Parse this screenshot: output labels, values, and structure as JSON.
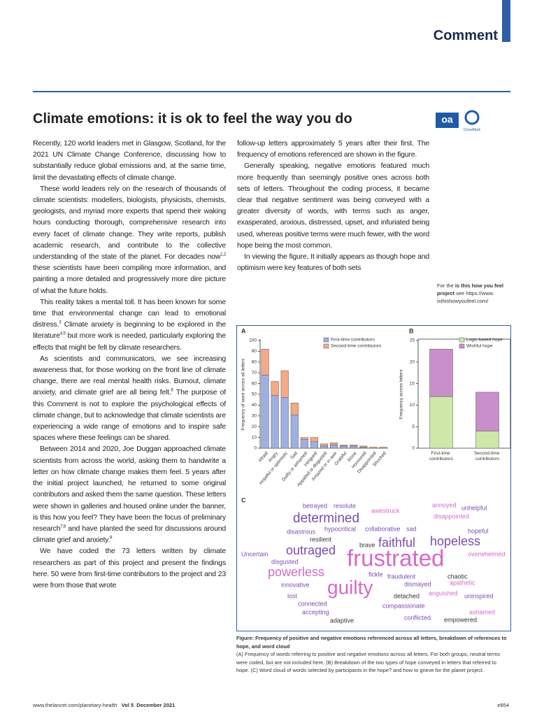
{
  "header": {
    "section": "Comment"
  },
  "title": "Climate emotions: it is ok to feel the way you do",
  "logos": {
    "oa": "oa",
    "crossmark": "CrossMark"
  },
  "body": {
    "left": [
      [
        "Recently, 120 world leaders met in Glasgow, Scotland, for the 2021 UN Climate Change Conference, discussing how to substantially reduce global emissions and, at the same time, limit the devastating effects of climate change."
      ],
      [
        "These world leaders rely on the research of thousands of climate scientists: modellers, biologists, physicists, chemists, geologists, and myriad more experts that spend their waking hours conducting thorough, comprehensive research into every facet of climate change. They write reports, publish academic research, and contribute to the collective understanding of the state of the planet. For decades now",
        {
          "sup": "1,2"
        },
        " these scientists have been compiling more information, and painting a more detailed and progressively more dire picture of what the future holds."
      ],
      [
        "This reality takes a mental toll. It has been known for some time that environmental change can lead to emotional distress.",
        {
          "sup": "3"
        },
        " Climate anxiety is beginning to be explored in the literature",
        {
          "sup": "4,5"
        },
        " but more work is needed, particularly exploring the effects that might be felt by climate researchers."
      ],
      [
        "As scientists and communicators, we see increasing awareness that, for those working on the front line of climate change, there are real mental health risks. Burnout, climate anxiety, and climate grief are all being felt.",
        {
          "sup": "6"
        },
        " The purpose of this Comment is not to explore the psychological effects of climate change, but to acknowledge that climate scientists are experiencing a wide range of emotions and to inspire safe spaces where these feelings can be shared."
      ],
      [
        "Between 2014 and 2020, Joe Duggan approached climate scientists from across the world, asking them to handwrite a letter on how climate change makes them feel. 5 years after the initial project launched, he returned to some original contributors and asked them the same question. These letters were shown in galleries and housed online under the banner, is this how you feel? They have been the focus of preliminary research",
        {
          "sup": "7,8"
        },
        " and have planted the seed for discussions around climate grief and anxiety.",
        {
          "sup": "9"
        }
      ],
      [
        "We have coded the 73 letters written by climate researchers as part of this project and present the findings here. 50 were from first-time contributors to the project and 23 were from those that wrote"
      ]
    ],
    "right": [
      [
        "follow-up letters approximately 5 years after their first. The frequency of emotions referenced are shown in the figure."
      ],
      [
        "Generally speaking, negative emotions featured much more frequently than seemingly positive ones across both sets of letters. Throughout the coding process, it became clear that negative sentiment was being conveyed with a greater diversity of words, with terms such as anger, exasperated, anxious, distressed, upset, and infuriated being used, whereas positive terms were much fewer, with the word hope being the most common."
      ],
      [
        "In viewing the figure, It initially appears as though hope and optimism were key features of both sets"
      ]
    ]
  },
  "sidenote": [
    "For the ",
    {
      "bold": "is this how you feel project"
    },
    " see https://www. isthishowyoufeel.com/"
  ],
  "chart_data": [
    {
      "type": "bar",
      "panel": "A",
      "stacked": true,
      "y_label": "Frequency of word across all letters",
      "legend": "upper right",
      "categories": [
        "Afraid",
        "Angry",
        "Hopeful or optimistic",
        "Sad",
        "Guilty or ashamed",
        "Intrigued",
        "Appalled or disgusted",
        "Amazed or in awe",
        "Grateful",
        "Alone",
        "Honoured",
        "Disappointed",
        "Shocked"
      ],
      "series": [
        {
          "name": "First-time contributors",
          "color": "#9fb0e0",
          "values": [
            68,
            49,
            47,
            31,
            8,
            6,
            2,
            3,
            2,
            2,
            1,
            0,
            0
          ]
        },
        {
          "name": "Second-time contributors",
          "color": "#f5a987",
          "values": [
            24,
            13,
            25,
            11,
            2,
            4,
            2,
            2,
            1,
            1,
            1,
            1,
            1
          ]
        }
      ],
      "ylim": [
        0,
        100
      ],
      "yticks": [
        0,
        10,
        20,
        30,
        40,
        50,
        60,
        70,
        80,
        90,
        100
      ]
    },
    {
      "type": "bar",
      "panel": "B",
      "stacked": true,
      "y_label": "Frequency across letters",
      "legend": "upper right",
      "categories": [
        "First-time contributors",
        "Second-time contributors"
      ],
      "series": [
        {
          "name": "Logic-based hope",
          "color": "#cde8a8",
          "values": [
            12,
            4
          ]
        },
        {
          "name": "Wishful hope",
          "color": "#c98fcc",
          "values": [
            11,
            9
          ]
        }
      ],
      "ylim": [
        0,
        25
      ],
      "yticks": [
        0,
        5,
        10,
        15,
        20,
        25
      ]
    },
    {
      "type": "wordcloud",
      "panel": "C",
      "words": [
        {
          "text": "betrayed",
          "weight": 9,
          "color": "#7a4cb0"
        },
        {
          "text": "resolute",
          "weight": 9,
          "color": "#7a4cb0"
        },
        {
          "text": "awestruck",
          "weight": 9,
          "color": "#d46ac8"
        },
        {
          "text": "annoyed",
          "weight": 9,
          "color": "#d46ac8"
        },
        {
          "text": "unhelpful",
          "weight": 9,
          "color": "#7a4cb0"
        },
        {
          "text": "disappointed",
          "weight": 9,
          "color": "#d46ac8"
        },
        {
          "text": "determined",
          "weight": 19,
          "color": "#7a4cb0"
        },
        {
          "text": "hypocritical",
          "weight": 9,
          "color": "#7a4cb0"
        },
        {
          "text": "collaborative",
          "weight": 9,
          "color": "#7a4cb0"
        },
        {
          "text": "sad",
          "weight": 9,
          "color": "#7a4cb0"
        },
        {
          "text": "hopeful",
          "weight": 9,
          "color": "#7a4cb0"
        },
        {
          "text": "disastrous",
          "weight": 9,
          "color": "#7a4cb0"
        },
        {
          "text": "resilient",
          "weight": 9,
          "color": "#333333"
        },
        {
          "text": "brave",
          "weight": 9,
          "color": "#333333"
        },
        {
          "text": "faithful",
          "weight": 18,
          "color": "#7a4cb0"
        },
        {
          "text": "hopeless",
          "weight": 18,
          "color": "#7a4cb0"
        },
        {
          "text": "Uncertain",
          "weight": 9,
          "color": "#7a4cb0"
        },
        {
          "text": "outraged",
          "weight": 18,
          "color": "#7a4cb0"
        },
        {
          "text": "frustrated",
          "weight": 33,
          "color": "#d46ac8"
        },
        {
          "text": "overwhelmed",
          "weight": 9,
          "color": "#d46ac8"
        },
        {
          "text": "disgusted",
          "weight": 9,
          "color": "#7a4cb0"
        },
        {
          "text": "powerless",
          "weight": 18,
          "color": "#d46ac8"
        },
        {
          "text": "fickle",
          "weight": 9,
          "color": "#7a4cb0"
        },
        {
          "text": "fraudulent",
          "weight": 9,
          "color": "#7a4cb0"
        },
        {
          "text": "chaotic",
          "weight": 9,
          "color": "#333333"
        },
        {
          "text": "innovative",
          "weight": 9,
          "color": "#7a4cb0"
        },
        {
          "text": "dismayed",
          "weight": 9,
          "color": "#7a4cb0"
        },
        {
          "text": "apathetic",
          "weight": 9,
          "color": "#d46ac8"
        },
        {
          "text": "guilty",
          "weight": 28,
          "color": "#d46ac8"
        },
        {
          "text": "lost",
          "weight": 9,
          "color": "#7a4cb0"
        },
        {
          "text": "detached",
          "weight": 9,
          "color": "#333333"
        },
        {
          "text": "anguished",
          "weight": 9,
          "color": "#d46ac8"
        },
        {
          "text": "uninspired",
          "weight": 9,
          "color": "#7a4cb0"
        },
        {
          "text": "connected",
          "weight": 9,
          "color": "#7a4cb0"
        },
        {
          "text": "compassionate",
          "weight": 9,
          "color": "#7a4cb0"
        },
        {
          "text": "accepting",
          "weight": 9,
          "color": "#7a4cb0"
        },
        {
          "text": "ashamed",
          "weight": 9,
          "color": "#d46ac8"
        },
        {
          "text": "conflicted",
          "weight": 9,
          "color": "#7a4cb0"
        },
        {
          "text": "empowered",
          "weight": 9,
          "color": "#333333"
        },
        {
          "text": "adaptive",
          "weight": 9,
          "color": "#333333"
        }
      ]
    }
  ],
  "caption": {
    "bold": "Figure: Frequency of positive and negative emotions referenced across all letters, breakdown of references to hope, and word cloud",
    "text": "(A) Frequency of words referring to positive and negative emotions across all letters. For both groups, neutral terms were coded, but are not included here. (B) Breakdown of the two types of hope conveyed in letters that referred to hope. (C) Word cloud of words selected by participants in the hope? and how to grieve for the planet project."
  },
  "footer": {
    "url": "www.thelancet.com/planetary-health",
    "volume": "Vol 5",
    "date": "December 2021",
    "page": "e854"
  }
}
